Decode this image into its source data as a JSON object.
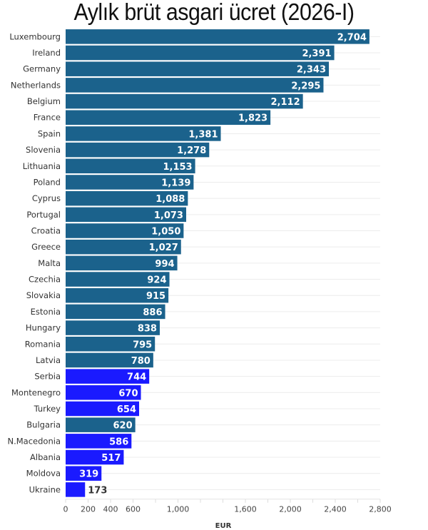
{
  "chart_data": {
    "type": "bar",
    "orientation": "horizontal",
    "title": "Aylık brüt asgari ücret (2026-I)",
    "xlabel": "EUR",
    "ylabel": "",
    "xlim": [
      0,
      2800
    ],
    "xticks": [
      0,
      200,
      400,
      600,
      1000,
      1600,
      2000,
      2400,
      2800
    ],
    "xtick_labels": [
      "0",
      "200",
      "400",
      "600",
      "1,000",
      "1,600",
      "2,000",
      "2,400",
      "2,800"
    ],
    "grid": true,
    "legend": null,
    "colors": {
      "eu": "#1b628c",
      "non_eu": "#1a1aff"
    },
    "categories": [
      "Luxembourg",
      "Ireland",
      "Germany",
      "Netherlands",
      "Belgium",
      "France",
      "Spain",
      "Slovenia",
      "Lithuania",
      "Poland",
      "Cyprus",
      "Portugal",
      "Croatia",
      "Greece",
      "Malta",
      "Czechia",
      "Slovakia",
      "Estonia",
      "Hungary",
      "Romania",
      "Latvia",
      "Serbia",
      "Montenegro",
      "Turkey",
      "Bulgaria",
      "N.Macedonia",
      "Albania",
      "Moldova",
      "Ukraine"
    ],
    "values": [
      2704,
      2391,
      2343,
      2295,
      2112,
      1823,
      1381,
      1278,
      1153,
      1139,
      1088,
      1073,
      1050,
      1027,
      994,
      924,
      915,
      886,
      838,
      795,
      780,
      744,
      670,
      654,
      620,
      586,
      517,
      319,
      173
    ],
    "value_labels": [
      "2,704",
      "2,391",
      "2,343",
      "2,295",
      "2,112",
      "1,823",
      "1,381",
      "1,278",
      "1,153",
      "1,139",
      "1,088",
      "1,073",
      "1,050",
      "1,027",
      "994",
      "924",
      "915",
      "886",
      "838",
      "795",
      "780",
      "744",
      "670",
      "654",
      "620",
      "586",
      "517",
      "319",
      "173"
    ],
    "groups": [
      "eu",
      "eu",
      "eu",
      "eu",
      "eu",
      "eu",
      "eu",
      "eu",
      "eu",
      "eu",
      "eu",
      "eu",
      "eu",
      "eu",
      "eu",
      "eu",
      "eu",
      "eu",
      "eu",
      "eu",
      "eu",
      "non_eu",
      "non_eu",
      "non_eu",
      "eu",
      "non_eu",
      "non_eu",
      "non_eu",
      "non_eu"
    ]
  }
}
